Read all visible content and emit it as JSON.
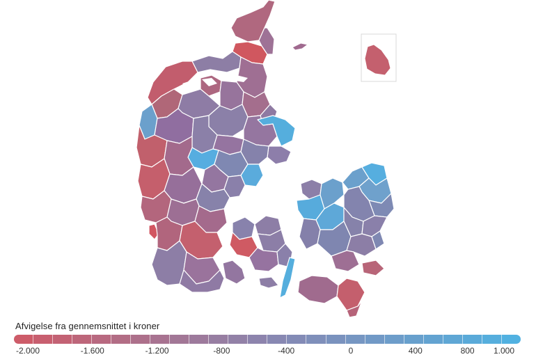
{
  "legend": {
    "title": "Afvigelse fra gennemsnittet i kroner",
    "tick_labels": [
      "-2.000",
      "-1.600",
      "-1.200",
      "-800",
      "-400",
      "0",
      "400",
      "800",
      "1.000"
    ],
    "tick_values": [
      -2000,
      -1600,
      -1200,
      -800,
      -400,
      0,
      400,
      800,
      1000
    ],
    "range": [
      -2000,
      1000
    ],
    "colors": {
      "low": "#d05a66",
      "mid": "#8a86b0",
      "high": "#4fb3e3"
    }
  }
}
